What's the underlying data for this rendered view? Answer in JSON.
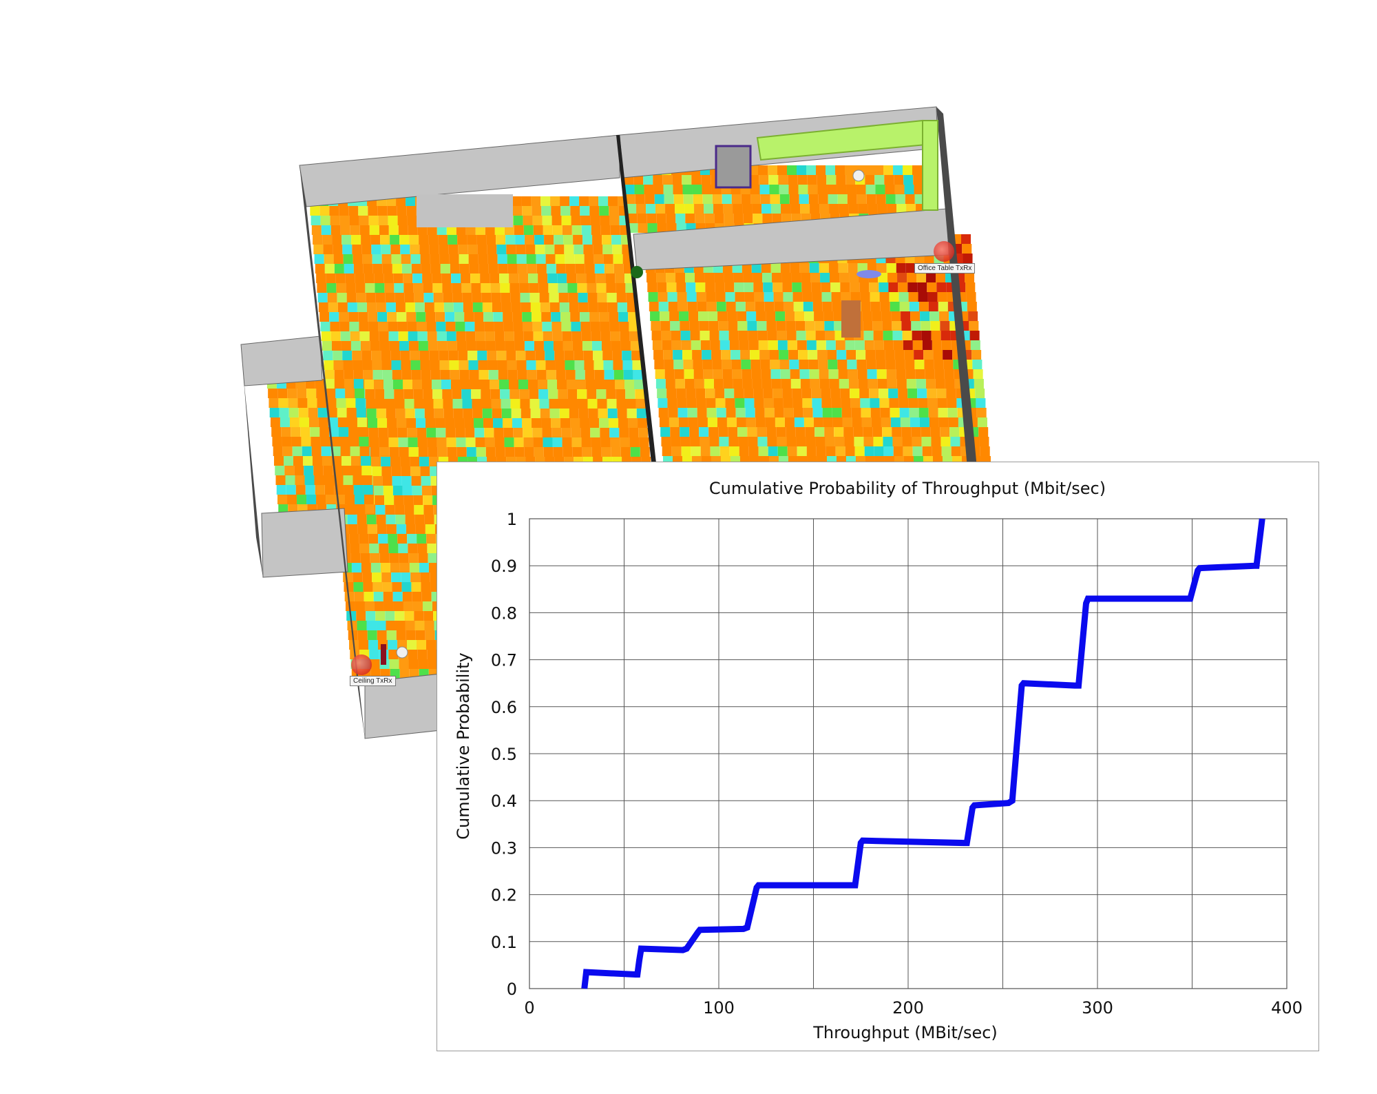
{
  "floorplan": {
    "transmitters": [
      {
        "label": "Office Table TxRx"
      },
      {
        "label": "Ceiling TxRx"
      }
    ],
    "heatmap_colors": [
      "#ff8800",
      "#ff9a10",
      "#ffb81c",
      "#ffd21e",
      "#f2ef1a",
      "#e6f53c",
      "#b8f05a",
      "#8ef08a",
      "#5ff0c8",
      "#3fe6e6",
      "#22d6d0",
      "#4ee04a"
    ],
    "hot_colors": [
      "#e04a10",
      "#d82a0a",
      "#c01a06",
      "#a80c06"
    ],
    "wall_color": "#c4c4c4",
    "side_wall_color": "#4a4a4a",
    "furniture_color": "#b8f26a"
  },
  "chart_data": {
    "type": "line",
    "title": "Cumulative Probability of Throughput (Mbit/sec)",
    "xlabel": "Throughput (MBit/sec)",
    "ylabel": "Cumulative Probability",
    "xlim": [
      0,
      400
    ],
    "ylim": [
      0,
      1
    ],
    "xticks": [
      "0",
      "100",
      "200",
      "300",
      "400"
    ],
    "yticks": [
      "0",
      "0.1",
      "0.2",
      "0.3",
      "0.4",
      "0.5",
      "0.6",
      "0.7",
      "0.8",
      "0.9",
      "1"
    ],
    "grid": true,
    "x_gridlines": [
      0,
      50,
      100,
      150,
      200,
      250,
      300,
      350,
      400
    ],
    "y_gridlines": [
      0,
      0.1,
      0.2,
      0.3,
      0.4,
      0.5,
      0.6,
      0.7,
      0.8,
      0.9,
      1
    ],
    "line_color": "#0a0aee",
    "series": [
      {
        "x": [
          29,
          30,
          56,
          57,
          58,
          59,
          81,
          83,
          89,
          90,
          113,
          115,
          120,
          121,
          170,
          172,
          175,
          176,
          229,
          231,
          234,
          235,
          253,
          255,
          260,
          261,
          288,
          290,
          294,
          295,
          347,
          349,
          353,
          354,
          383,
          384,
          387
        ],
        "y": [
          0,
          0.035,
          0.03,
          0.03,
          0.06,
          0.085,
          0.082,
          0.085,
          0.12,
          0.125,
          0.127,
          0.13,
          0.215,
          0.22,
          0.22,
          0.22,
          0.31,
          0.315,
          0.31,
          0.31,
          0.385,
          0.39,
          0.395,
          0.4,
          0.645,
          0.65,
          0.645,
          0.645,
          0.82,
          0.83,
          0.83,
          0.83,
          0.89,
          0.895,
          0.9,
          0.9,
          1.0
        ]
      }
    ]
  }
}
